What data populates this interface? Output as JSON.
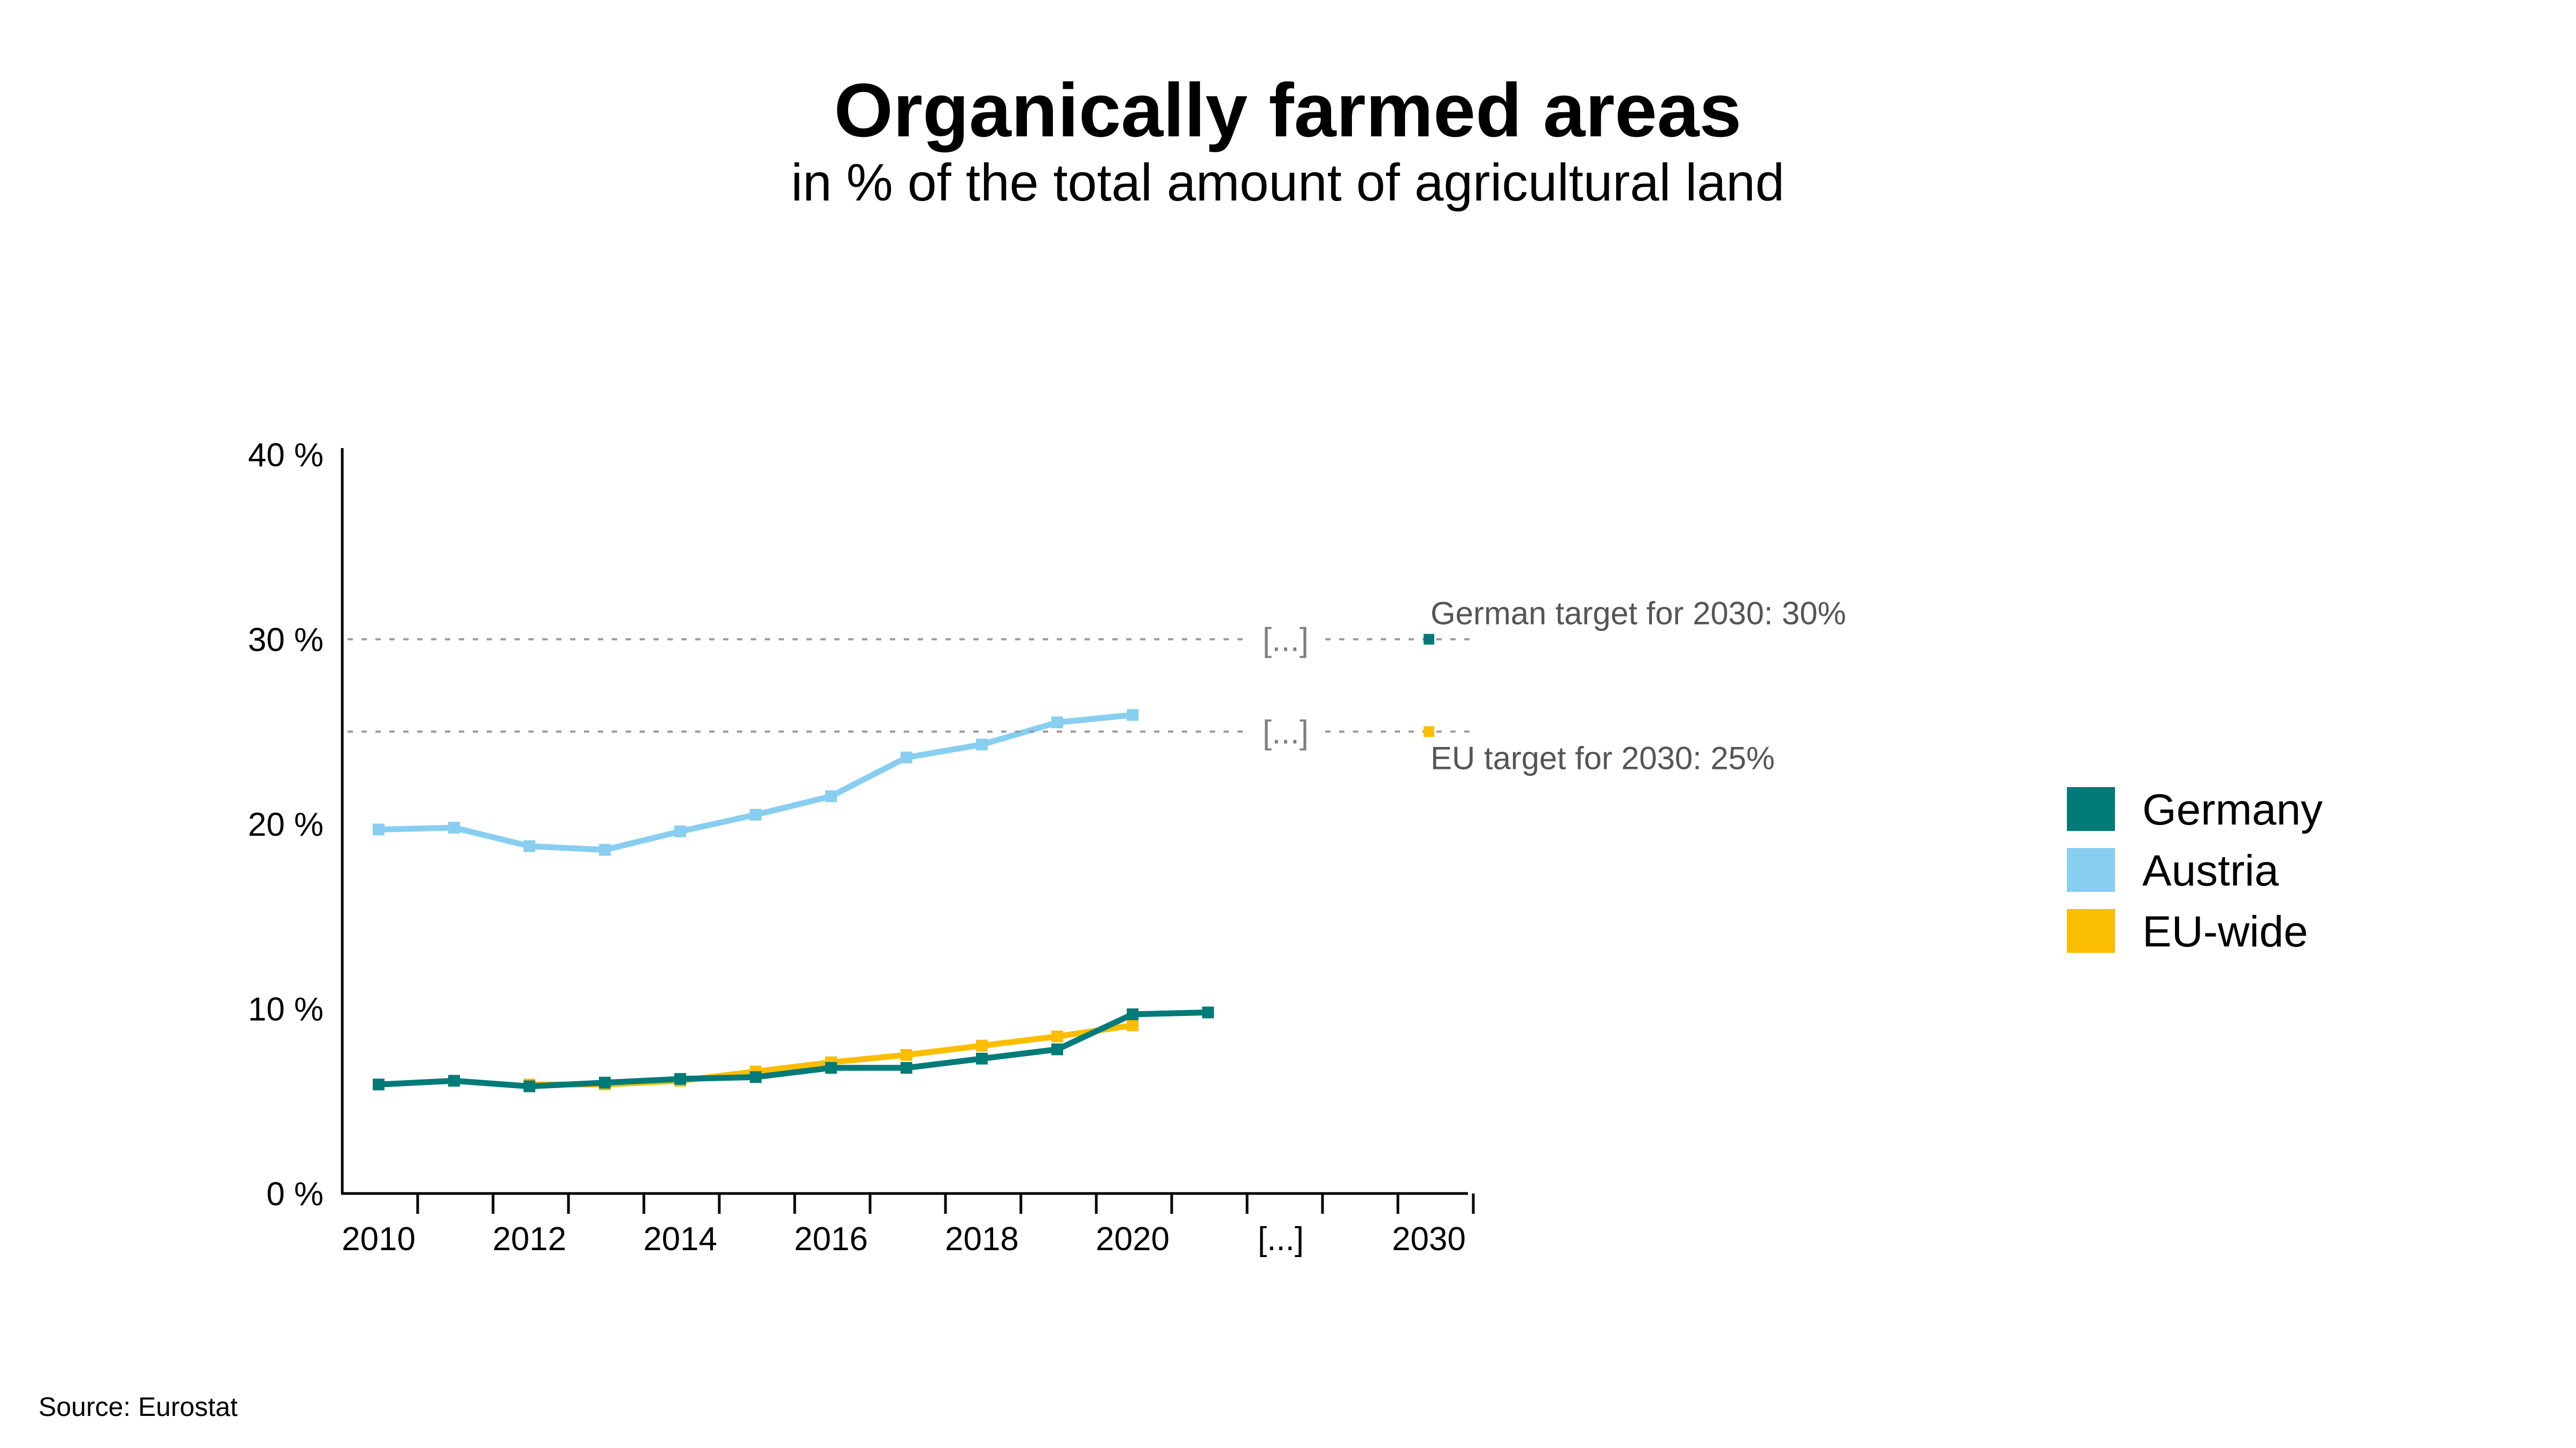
{
  "chart_data": {
    "type": "line",
    "title": "Organically farmed areas",
    "subtitle": "in % of the total amount of agricultural land",
    "source": "Source: Eurostat",
    "x_tick_labels": [
      "2010",
      "2012",
      "2014",
      "2016",
      "2018",
      "2020",
      "[...]",
      "2030"
    ],
    "axis_gap_label": "[...]",
    "y_tick_labels": [
      "0 %",
      "10 %",
      "20 %",
      "30 %",
      "40 %"
    ],
    "y_ticks": [
      0,
      10,
      20,
      30,
      40
    ],
    "ylim": [
      0,
      40
    ],
    "series": [
      {
        "name": "Germany",
        "color": "#007b78",
        "x": [
          2010,
          2011,
          2012,
          2013,
          2014,
          2015,
          2016,
          2017,
          2018,
          2019,
          2020,
          2021
        ],
        "values": [
          5.9,
          6.1,
          5.8,
          6.0,
          6.2,
          6.3,
          6.8,
          6.8,
          7.3,
          7.8,
          9.7,
          9.8
        ]
      },
      {
        "name": "Austria",
        "color": "#87cef0",
        "x": [
          2010,
          2011,
          2012,
          2013,
          2014,
          2015,
          2016,
          2017,
          2018,
          2019,
          2020
        ],
        "values": [
          19.7,
          19.8,
          18.8,
          18.6,
          19.6,
          20.5,
          21.5,
          23.6,
          24.3,
          25.5,
          25.9
        ]
      },
      {
        "name": "EU-wide",
        "color": "#fbbd00",
        "x": [
          2012,
          2013,
          2014,
          2015,
          2016,
          2017,
          2018,
          2019,
          2020
        ],
        "values": [
          5.9,
          5.9,
          6.1,
          6.6,
          7.1,
          7.5,
          8.0,
          8.5,
          9.1
        ]
      }
    ],
    "targets": [
      {
        "label": "German target for 2030: 30%",
        "value": 30,
        "year": 2030,
        "color": "#007b78"
      },
      {
        "label": "EU target for 2030: 25%",
        "value": 25,
        "year": 2030,
        "color": "#fbbd00"
      }
    ],
    "legend_position": "right"
  }
}
